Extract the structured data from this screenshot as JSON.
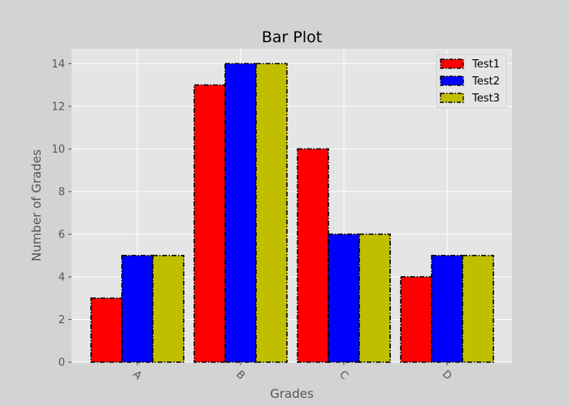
{
  "chart_data": {
    "type": "bar",
    "title": "Bar Plot",
    "xlabel": "Grades",
    "ylabel": "Number of Grades",
    "categories": [
      "A",
      "B",
      "C",
      "D"
    ],
    "series": [
      {
        "name": "Test1",
        "color": "#ff0000",
        "values": [
          3,
          13,
          10,
          4
        ]
      },
      {
        "name": "Test2",
        "color": "#0000ff",
        "values": [
          5,
          14,
          6,
          5
        ]
      },
      {
        "name": "Test3",
        "color": "#bfbf00",
        "values": [
          5,
          14,
          6,
          5
        ]
      }
    ],
    "yticks": [
      0,
      2,
      4,
      6,
      8,
      10,
      12,
      14
    ],
    "ylim": [
      0,
      14.7
    ],
    "xtick_rotation_deg": 45,
    "grid": true,
    "legend_position": "top-right",
    "bar_edge_style": "dash-dot black",
    "plot_background": "#e5e5e5",
    "figure_background": "#d3d3d3"
  }
}
